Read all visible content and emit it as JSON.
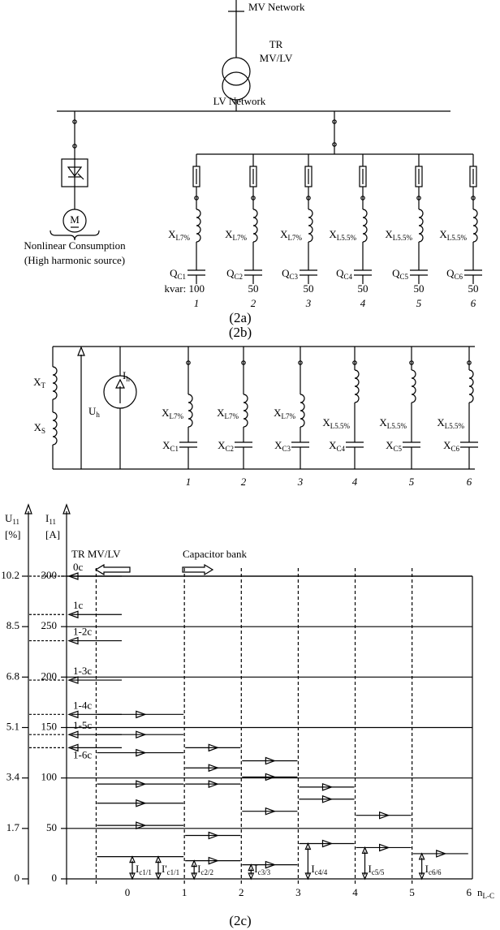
{
  "fig_2a": {
    "mv_label": "MV Network",
    "tr_label": [
      "TR",
      "MV/LV"
    ],
    "lv_label": "LV Network",
    "motor_label": "M",
    "load_label": [
      "Nonlinear Consumption",
      "(High harmonic source)"
    ],
    "branches": [
      {
        "inductor": {
          "main": "X",
          "sub": "L7%"
        },
        "capacitor": {
          "main": "Q",
          "sub": "C1"
        },
        "rating": "kvar: 100",
        "number": "1"
      },
      {
        "inductor": {
          "main": "X",
          "sub": "L7%"
        },
        "capacitor": {
          "main": "Q",
          "sub": "C2"
        },
        "rating": "50",
        "number": "2"
      },
      {
        "inductor": {
          "main": "X",
          "sub": "L7%"
        },
        "capacitor": {
          "main": "Q",
          "sub": "C3"
        },
        "rating": "50",
        "number": "3"
      },
      {
        "inductor": {
          "main": "X",
          "sub": "L5.5%"
        },
        "capacitor": {
          "main": "Q",
          "sub": "C4"
        },
        "rating": "50",
        "number": "4"
      },
      {
        "inductor": {
          "main": "X",
          "sub": "L5.5%"
        },
        "capacitor": {
          "main": "Q",
          "sub": "C5"
        },
        "rating": "50",
        "number": "5"
      },
      {
        "inductor": {
          "main": "X",
          "sub": "L5.5%"
        },
        "capacitor": {
          "main": "Q",
          "sub": "C6"
        },
        "rating": "50",
        "number": "6"
      }
    ],
    "caption": "(2a)"
  },
  "fig_2b": {
    "source_inductors": [
      {
        "main": "X",
        "sub": "T"
      },
      {
        "main": "X",
        "sub": "S"
      }
    ],
    "voltage_label": {
      "main": "U",
      "sub": "h"
    },
    "current_label": {
      "main": "I",
      "sub": "h"
    },
    "branches": [
      {
        "inductor": {
          "main": "X",
          "sub": "L7%"
        },
        "capacitor": {
          "main": "X",
          "sub": "C1"
        },
        "number": "1"
      },
      {
        "inductor": {
          "main": "X",
          "sub": "L7%"
        },
        "capacitor": {
          "main": "X",
          "sub": "C2"
        },
        "number": "2"
      },
      {
        "inductor": {
          "main": "X",
          "sub": "L7%"
        },
        "capacitor": {
          "main": "X",
          "sub": "C3"
        },
        "number": "3"
      },
      {
        "inductor": {
          "main": "X",
          "sub": "L5.5%"
        },
        "capacitor": {
          "main": "X",
          "sub": "C4"
        },
        "number": "4"
      },
      {
        "inductor": {
          "main": "X",
          "sub": "L5.5%"
        },
        "capacitor": {
          "main": "X",
          "sub": "C5"
        },
        "number": "5"
      },
      {
        "inductor": {
          "main": "X",
          "sub": "L5.5%"
        },
        "capacitor": {
          "main": "X",
          "sub": "C6"
        },
        "number": "6"
      }
    ],
    "caption": "(2b)"
  },
  "chart_data": {
    "type": "step",
    "annotations": {
      "transformer": "TR MV/LV",
      "capacitors": "Capacitor bank"
    },
    "y_label": {
      "main": "I",
      "sub": "11",
      "unit": "[A]"
    },
    "y2_label": {
      "main": "U",
      "sub": "11",
      "unit": "[%]"
    },
    "x_label": {
      "main": "n",
      "sub": "L-C"
    },
    "xlim": [
      -1.07,
      6.06
    ],
    "xticks": [
      0,
      1,
      2,
      3,
      4,
      5,
      6
    ],
    "ylim": [
      0,
      300
    ],
    "yticks": [
      0,
      50,
      100,
      150,
      200,
      250,
      300
    ],
    "y2lim": [
      0,
      10.2
    ],
    "y2ticks": [
      0,
      1.7,
      3.4,
      5.1,
      6.8,
      8.5,
      10.2
    ],
    "grid": true,
    "series": [
      {
        "name": "0c",
        "color": "#000000",
        "values": [
          300,
          null,
          null,
          null,
          null,
          null,
          null
        ]
      },
      {
        "name": "1c",
        "color": "#404040",
        "values": [
          262,
          53,
          null,
          null,
          null,
          null,
          null
        ]
      },
      {
        "name": "1-2c",
        "color": "#a0a0a0",
        "values": [
          236,
          75,
          18,
          null,
          null,
          null,
          null
        ]
      },
      {
        "name": "1-3c",
        "color": "#e00000",
        "values": [
          197,
          94,
          43,
          14,
          null,
          null,
          null
        ]
      },
      {
        "name": "1-4c",
        "color": "#22cc22",
        "values": [
          163,
          125,
          94,
          67,
          35,
          null,
          null
        ]
      },
      {
        "name": "1-5c",
        "color": "#9a1fc2",
        "values": [
          143,
          143,
          110,
          101,
          79,
          31,
          null
        ]
      },
      {
        "name": "1-6c",
        "color": "#2e5fe0",
        "values": [
          130,
          163,
          130,
          117,
          91,
          63,
          25
        ]
      },
      {
        "color": "#888888",
        "values": [
          null,
          22,
          null,
          null,
          null,
          null,
          null
        ]
      }
    ],
    "current_labels": [
      [
        {
          "main": "I",
          "sub": "c1/1"
        },
        {
          "main": "I'",
          "sub": "c1/1"
        }
      ],
      [
        {
          "main": "I",
          "sub": "c2/2"
        }
      ],
      [
        {
          "main": "I",
          "sub": "c3/3"
        }
      ],
      [
        {
          "main": "I",
          "sub": "c4/4"
        }
      ],
      [
        {
          "main": "I",
          "sub": "c5/5"
        }
      ],
      [
        {
          "main": "I",
          "sub": "c6/6"
        }
      ]
    ],
    "caption": "(2c)"
  }
}
